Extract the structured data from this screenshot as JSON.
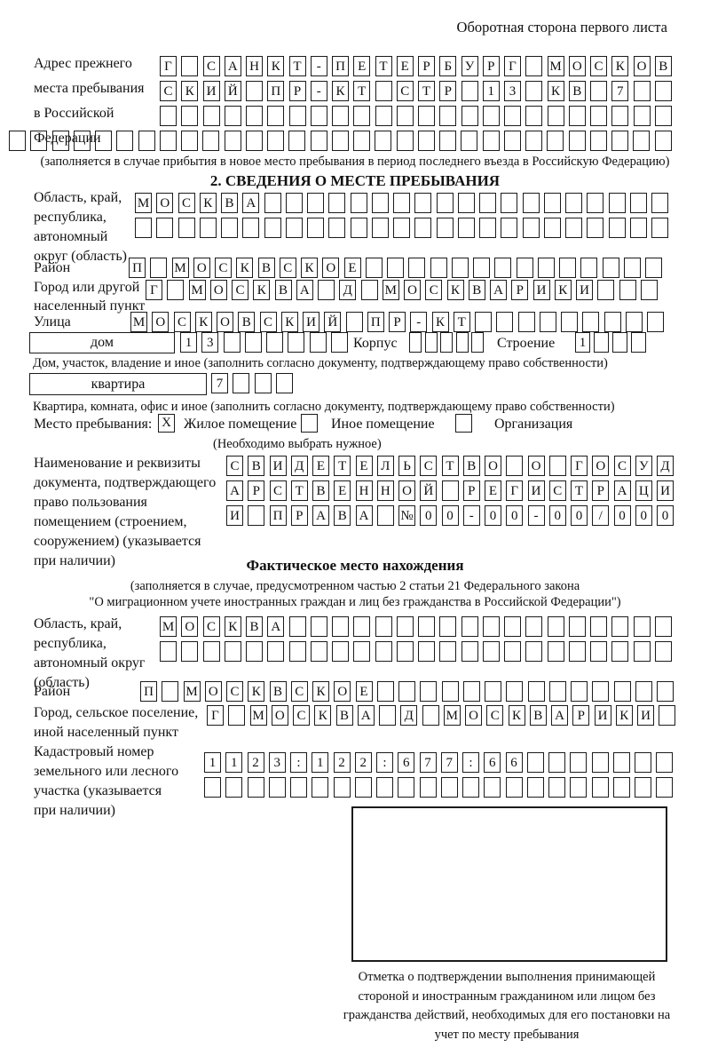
{
  "page_header": "Оборотная сторона первого листа",
  "prev_address": {
    "label": "Адрес прежнего\nместа пребывания\nв Российской\nФедерации",
    "row1": "Г САНКТ-ПЕТЕРБУРГ МОСКОВ",
    "row2": "СКИЙ ПР-КТ СТР 13 КВ 7",
    "row3": "",
    "row4": "",
    "note": "(заполняется в случае прибытия в новое место пребывания в период последнего въезда в Российскую Федерацию)"
  },
  "section2": {
    "title": "2. СВЕДЕНИЯ О МЕСТЕ ПРЕБЫВАНИЯ",
    "region_label": "Область, край,\nреспублика,\nавтономный\nокруг (область)",
    "region_row1": "МОСКВА",
    "region_row2": "",
    "district_label": "Район",
    "district_row": "П МОСКВСКОЕ",
    "city_label": "Город или другой\nнаселенный пункт",
    "city_row": "Г МОСКВА Д МОСКВАРИКИ",
    "street_label": "Улица",
    "street_row": "МОСКОВСКИЙ ПР-КТ",
    "house_box_label": "дом",
    "house_cells": "13",
    "korpus_label": "Корпус",
    "korpus_cells": "",
    "stroenie_label": "Строение",
    "stroenie_cells": "1",
    "house_note": "Дом, участок, владение и иное (заполнить согласно документу, подтверждающему право собственности)",
    "apartment_box_label": "квартира",
    "apartment_cells": "7",
    "apartment_note": "Квартира, комната, офис и иное (заполнить согласно документу, подтверждающему право собственности)",
    "stay_label": "Место пребывания:",
    "stay_mark_residential": "X",
    "stay_mark_other": "",
    "stay_mark_org": "",
    "stay_opt1": "Жилое помещение",
    "stay_opt2": "Иное помещение",
    "stay_opt3": "Организация",
    "stay_note": "(Необходимо выбрать нужное)",
    "doc_label": "Наименование и реквизиты\nдокумента, подтверждающего\nправо пользования\nпомещением (строением,\nсооружением) (указывается\nпри наличии)",
    "doc_row1": "СВИДЕТЕЛЬСТВО О ГОСУД",
    "doc_row2": "АРСТВЕННОЙ РЕГИСТРАЦИ",
    "doc_row3": "И ПРАВА №00-00-00/000"
  },
  "actual_location": {
    "title": "Фактическое место нахождения",
    "note1": "(заполняется в случае, предусмотренном частью 2 статьи 21 Федерального закона",
    "note2": "\"О миграционном учете иностранных граждан и лиц без гражданства в Российской Федерации\")",
    "region_label": "Область, край,\nреспублика,\nавтономный округ\n(область)",
    "region_row1": "МОСКВА",
    "region_row2": "",
    "district_label": "Район",
    "district_row": "П МОСКВСКОЕ",
    "city_label": "Город, сельское поселение,\nиной населенный пункт",
    "city_row": "Г МОСКВА Д МОСКВАРИКИ",
    "cadastral_label": "Кадастровый номер\nземельного или лесного\nучастка (указывается\nпри наличии)",
    "cadastral_row1": "1123:122:677:66",
    "cadastral_row2": ""
  },
  "confirmation": {
    "caption": "Отметка о подтверждении выполнения принимающей стороной и иностранным гражданином или лицом без гражданства действий, необходимых для его постановки на учет по месту пребывания"
  }
}
